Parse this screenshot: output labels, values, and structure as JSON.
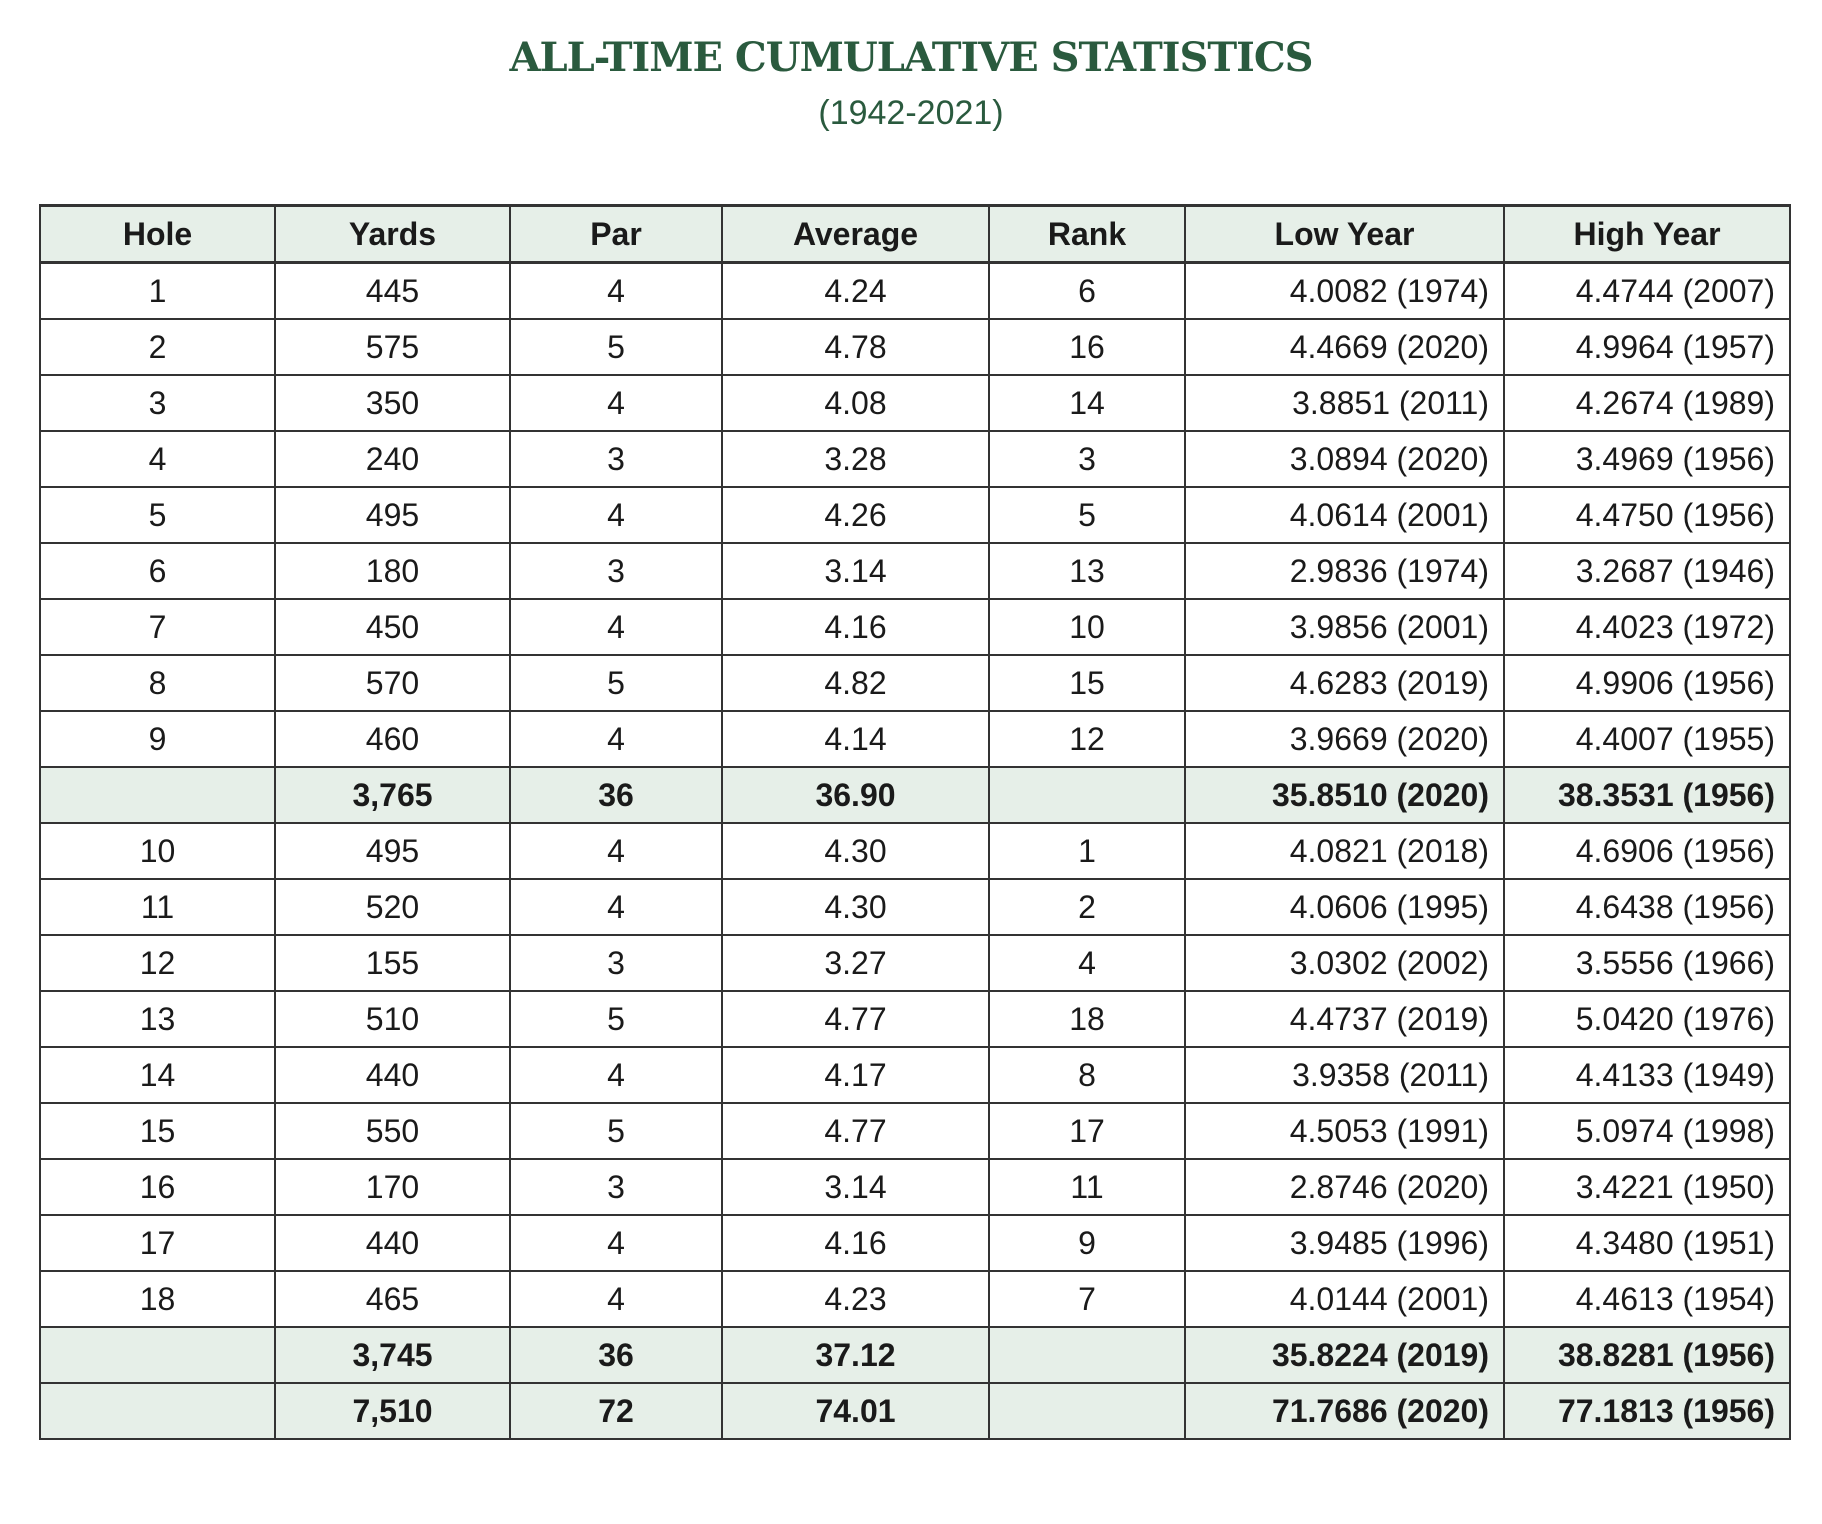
{
  "title": "ALL-TIME CUMULATIVE STATISTICS",
  "subtitle": "(1942-2021)",
  "colors": {
    "title": "#2a5a3e",
    "header_bg": "#e6efe8"
  },
  "columns": [
    "Hole",
    "Yards",
    "Par",
    "Average",
    "Rank",
    "Low Year",
    "High Year"
  ],
  "rows": [
    [
      "1",
      "445",
      "4",
      "4.24",
      "6",
      "4.0082 (1974)",
      "4.4744 (2007)"
    ],
    [
      "2",
      "575",
      "5",
      "4.78",
      "16",
      "4.4669 (2020)",
      "4.9964 (1957)"
    ],
    [
      "3",
      "350",
      "4",
      "4.08",
      "14",
      "3.8851 (2011)",
      "4.2674 (1989)"
    ],
    [
      "4",
      "240",
      "3",
      "3.28",
      "3",
      "3.0894 (2020)",
      "3.4969 (1956)"
    ],
    [
      "5",
      "495",
      "4",
      "4.26",
      "5",
      "4.0614 (2001)",
      "4.4750 (1956)"
    ],
    [
      "6",
      "180",
      "3",
      "3.14",
      "13",
      "2.9836 (1974)",
      "3.2687 (1946)"
    ],
    [
      "7",
      "450",
      "4",
      "4.16",
      "10",
      "3.9856 (2001)",
      "4.4023 (1972)"
    ],
    [
      "8",
      "570",
      "5",
      "4.82",
      "15",
      "4.6283 (2019)",
      "4.9906 (1956)"
    ],
    [
      "9",
      "460",
      "4",
      "4.14",
      "12",
      "3.9669 (2020)",
      "4.4007 (1955)"
    ],
    [
      "",
      "3,765",
      "36",
      "36.90",
      "",
      "35.8510 (2020)",
      "38.3531 (1956)"
    ],
    [
      "10",
      "495",
      "4",
      "4.30",
      "1",
      "4.0821 (2018)",
      "4.6906 (1956)"
    ],
    [
      "11",
      "520",
      "4",
      "4.30",
      "2",
      "4.0606 (1995)",
      "4.6438 (1956)"
    ],
    [
      "12",
      "155",
      "3",
      "3.27",
      "4",
      "3.0302 (2002)",
      "3.5556 (1966)"
    ],
    [
      "13",
      "510",
      "5",
      "4.77",
      "18",
      "4.4737 (2019)",
      "5.0420 (1976)"
    ],
    [
      "14",
      "440",
      "4",
      "4.17",
      "8",
      "3.9358 (2011)",
      "4.4133 (1949)"
    ],
    [
      "15",
      "550",
      "5",
      "4.77",
      "17",
      "4.5053 (1991)",
      "5.0974 (1998)"
    ],
    [
      "16",
      "170",
      "3",
      "3.14",
      "11",
      "2.8746 (2020)",
      "3.4221 (1950)"
    ],
    [
      "17",
      "440",
      "4",
      "4.16",
      "9",
      "3.9485 (1996)",
      "4.3480 (1951)"
    ],
    [
      "18",
      "465",
      "4",
      "4.23",
      "7",
      "4.0144 (2001)",
      "4.4613 (1954)"
    ],
    [
      "",
      "3,745",
      "36",
      "37.12",
      "",
      "35.8224 (2019)",
      "38.8281 (1956)"
    ],
    [
      "",
      "7,510",
      "72",
      "74.01",
      "",
      "71.7686 (2020)",
      "77.1813 (1956)"
    ]
  ],
  "subtotal_rows": [
    9,
    19,
    20
  ]
}
